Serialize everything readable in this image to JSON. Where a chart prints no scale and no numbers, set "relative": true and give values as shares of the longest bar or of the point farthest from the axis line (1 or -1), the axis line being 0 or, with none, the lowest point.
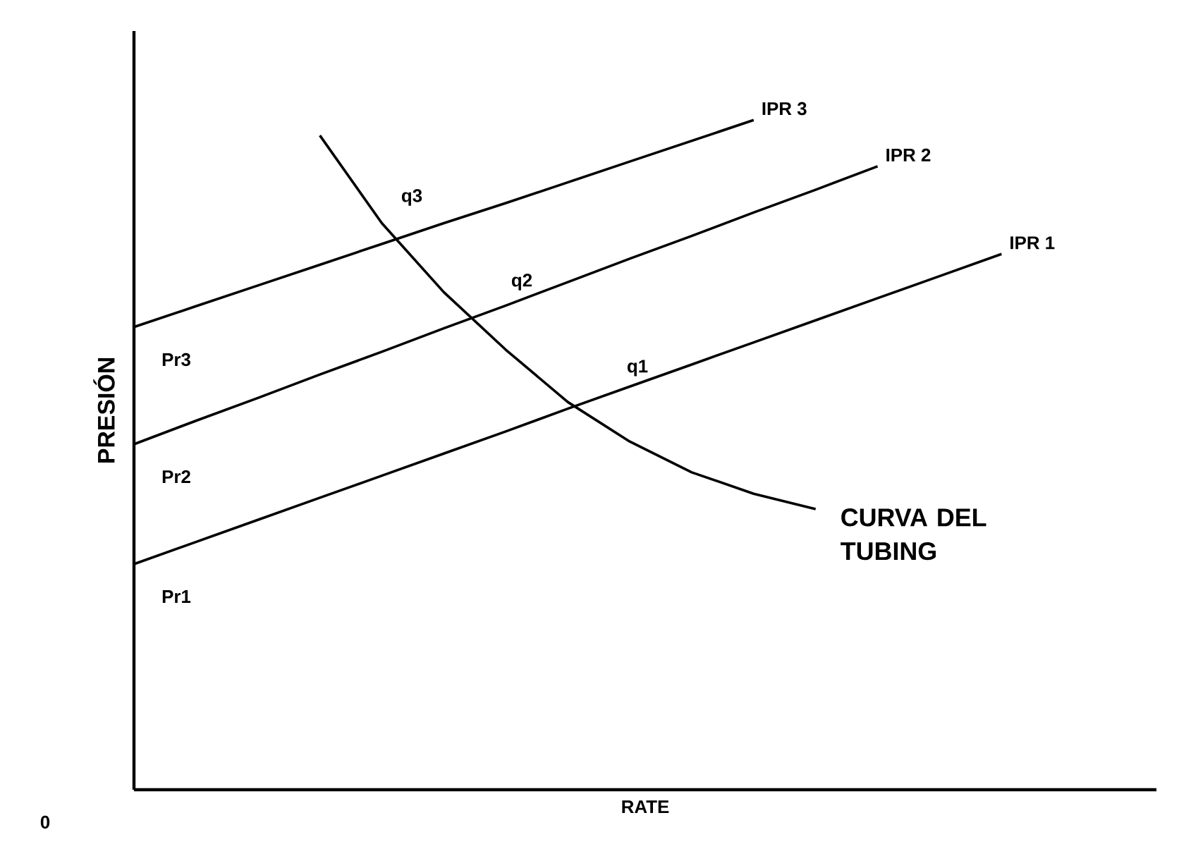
{
  "chart_data": {
    "type": "line",
    "relative": true,
    "xlabel": "RATE",
    "ylabel": "PRESIÓN",
    "categories": [
      null,
      null,
      null,
      null,
      null,
      null,
      null,
      null,
      null,
      null,
      null,
      null,
      null,
      null,
      null,
      null,
      null
    ],
    "series": [
      {
        "name": "IPR 1",
        "color": "#000000",
        "values": [
          0.337,
          0.37,
          0.403,
          0.436,
          0.469,
          0.502,
          0.535,
          0.569,
          0.602,
          0.635,
          0.668,
          0.701,
          0.734,
          0.767,
          0.8,
          null,
          null
        ]
      },
      {
        "name": "IPR 2",
        "color": "#000000",
        "values": [
          0.516,
          0.551,
          0.585,
          0.62,
          0.654,
          0.689,
          0.723,
          0.758,
          0.793,
          0.827,
          0.862,
          0.896,
          0.931,
          null,
          null,
          null,
          null
        ]
      },
      {
        "name": "IPR 3",
        "color": "#000000",
        "values": [
          0.691,
          0.722,
          0.753,
          0.784,
          0.815,
          0.846,
          0.876,
          0.907,
          0.938,
          0.969,
          1.0,
          null,
          null,
          null,
          null,
          null,
          null
        ]
      },
      {
        "name": "CURVA DEL TUBING",
        "color": "#000000",
        "values": [
          null,
          null,
          null,
          0.977,
          0.846,
          0.743,
          0.657,
          0.579,
          0.52,
          0.474,
          0.442,
          0.419,
          null,
          null,
          null,
          null,
          null
        ]
      }
    ],
    "annotations": [
      "0",
      "q1",
      "q2",
      "q3",
      "Pr1",
      "Pr2",
      "Pr3"
    ]
  }
}
